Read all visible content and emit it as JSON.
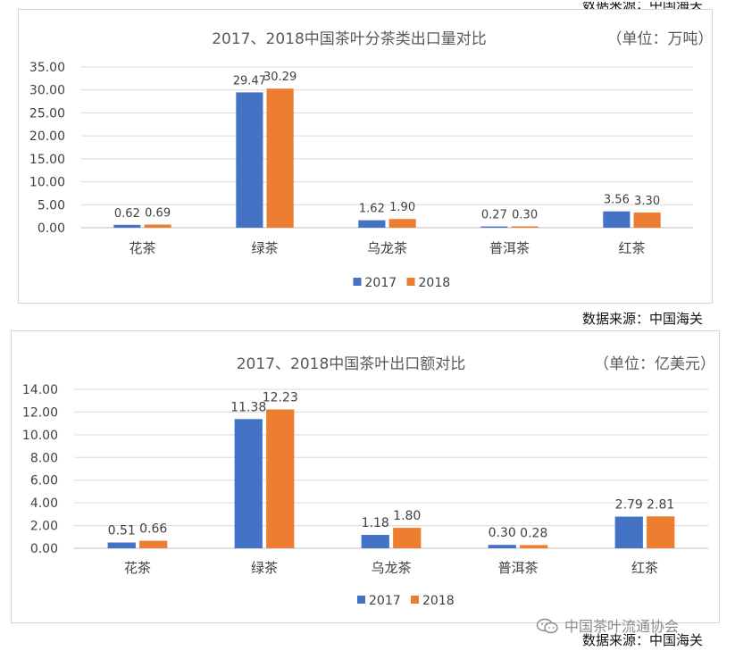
{
  "sources": {
    "top_partial": "数据来源：中国海关",
    "chart1": "数据来源：中国海关",
    "chart2": "数据来源：中国海关"
  },
  "watermark": {
    "text": "中国茶叶流通协会",
    "icon": "wechat-icon"
  },
  "colors": {
    "series_2017": "#4472C4",
    "series_2018": "#ED7D31",
    "grid": "#d9d9d9",
    "text": "#595959"
  },
  "chart_data": [
    {
      "type": "bar",
      "title": "2017、2018中国茶叶分茶类出口量对比",
      "unit": "（单位：万吨）",
      "categories": [
        "花茶",
        "绿茶",
        "乌龙茶",
        "普洱茶",
        "红茶"
      ],
      "series": [
        {
          "name": "2017",
          "values": [
            0.62,
            29.47,
            1.62,
            0.27,
            3.56
          ]
        },
        {
          "name": "2018",
          "values": [
            0.69,
            30.29,
            1.9,
            0.3,
            3.3
          ]
        }
      ],
      "ylim": [
        0,
        35
      ],
      "yticks": [
        "0.00",
        "5.00",
        "10.00",
        "15.00",
        "20.00",
        "25.00",
        "30.00",
        "35.00"
      ],
      "labels": [
        [
          "0.62",
          "29.47",
          "1.62",
          "0.27",
          "3.56"
        ],
        [
          "0.69",
          "30.29",
          "1.90",
          "0.30",
          "3.30"
        ]
      ],
      "grid": true,
      "legend": "bottom"
    },
    {
      "type": "bar",
      "title": "2017、2018中国茶叶出口额对比",
      "unit": "（单位：亿美元）",
      "categories": [
        "花茶",
        "绿茶",
        "乌龙茶",
        "普洱茶",
        "红茶"
      ],
      "series": [
        {
          "name": "2017",
          "values": [
            0.51,
            11.38,
            1.18,
            0.3,
            2.79
          ]
        },
        {
          "name": "2018",
          "values": [
            0.66,
            12.23,
            1.8,
            0.28,
            2.81
          ]
        }
      ],
      "ylim": [
        0,
        14
      ],
      "yticks": [
        "0.00",
        "2.00",
        "4.00",
        "6.00",
        "8.00",
        "10.00",
        "12.00",
        "14.00"
      ],
      "labels": [
        [
          "0.51",
          "11.38",
          "1.18",
          "0.30",
          "2.79"
        ],
        [
          "0.66",
          "12.23",
          "1.80",
          "0.28",
          "2.81"
        ]
      ],
      "grid": true,
      "legend": "bottom"
    }
  ]
}
